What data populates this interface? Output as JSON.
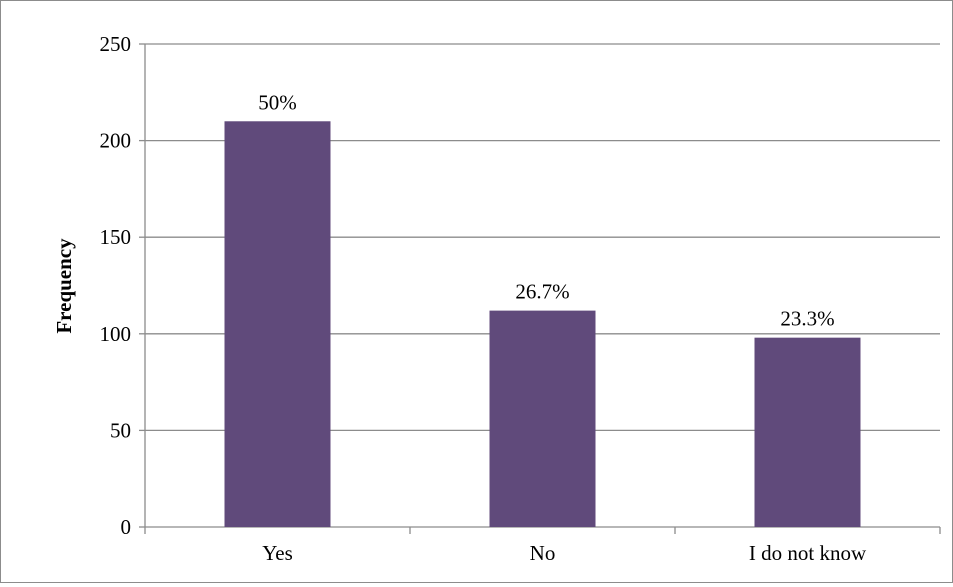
{
  "chart_data": {
    "type": "bar",
    "title": "",
    "xlabel": "",
    "ylabel": "Frequency",
    "ylim": [
      0,
      250
    ],
    "yticks": [
      0,
      50,
      100,
      150,
      200,
      250
    ],
    "grid": true,
    "legend": "none",
    "categories": [
      "Yes",
      "No",
      "I do not know"
    ],
    "values": [
      210,
      112,
      98
    ],
    "data_labels": [
      "50%",
      "26.7%",
      "23.3%"
    ],
    "colors": {
      "bar": "#604a7b",
      "gridline": "#8c8c8c",
      "axis": "#8c8c8c"
    }
  }
}
